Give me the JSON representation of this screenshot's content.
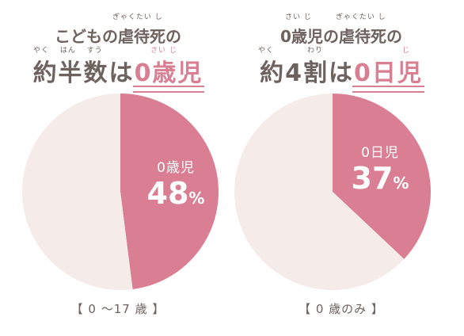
{
  "colors": {
    "highlight": "#d97e93",
    "remainder": "#f5ebe9",
    "text": "#6e625e"
  },
  "charts": [
    {
      "title_line1": "こどもの虐待死の",
      "title_line1_ruby": "ぎゃくたい し",
      "title_line2_prefix": "約半数は",
      "title_line2_prefix_ruby": "やく はん すう",
      "title_line2_highlight": "0歳児",
      "title_line2_highlight_ruby": "さい じ",
      "slice_label": "0歳児",
      "percent_number": "48",
      "percent_unit": "%",
      "caption": "【 0 ～17 歳 】"
    },
    {
      "title_line1": "0歳児の虐待死の",
      "title_line1_ruby_a": "さい じ",
      "title_line1_ruby_b": "ぎゃくたい し",
      "title_line2_prefix": "約4割は",
      "title_line2_prefix_ruby_a": "やく",
      "title_line2_prefix_ruby_b": "わり",
      "title_line2_highlight": "0日児",
      "title_line2_highlight_ruby": "じ",
      "slice_label": "0日児",
      "percent_number": "37",
      "percent_unit": "%",
      "caption": "【 0 歳のみ 】"
    }
  ],
  "chart_data": [
    {
      "type": "pie",
      "title": "こどもの虐待死の約半数は0歳児",
      "labels": [
        "0歳児",
        ""
      ],
      "values": [
        48,
        52
      ],
      "colors": [
        "#d97e93",
        "#f5ebe9"
      ],
      "caption": "【 0 ～17 歳 】"
    },
    {
      "type": "pie",
      "title": "0歳児の虐待死の約4割は0日児",
      "labels": [
        "0日児",
        ""
      ],
      "values": [
        37,
        63
      ],
      "colors": [
        "#d97e93",
        "#f5ebe9"
      ],
      "caption": "【 0 歳のみ 】"
    }
  ]
}
